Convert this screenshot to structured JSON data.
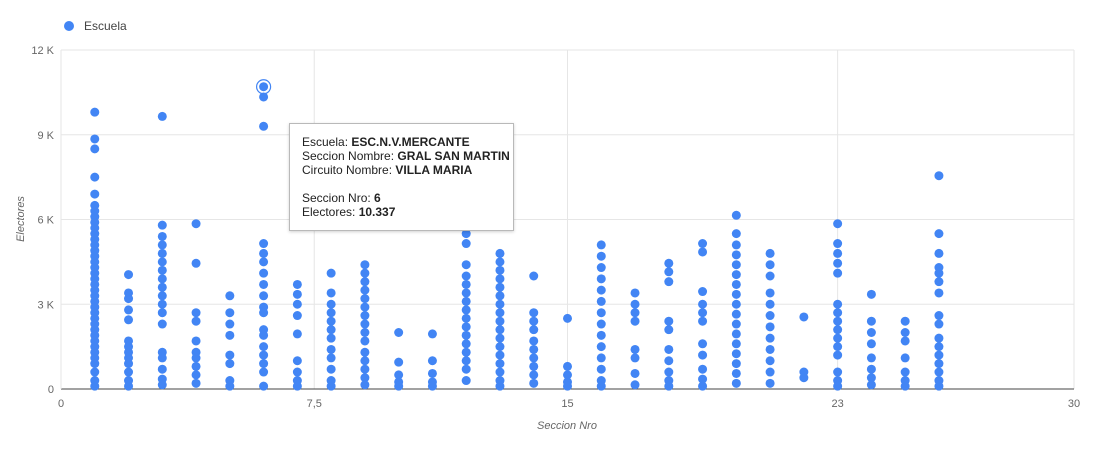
{
  "colors": {
    "series": "#4285f4",
    "grid": "#e6e6e6",
    "axis": "#444444"
  },
  "legend": {
    "label": "Escuela",
    "icon": "legend-circle-icon"
  },
  "tooltip": {
    "rows": [
      {
        "key": "Escuela:",
        "value": "ESC.N.V.MERCANTE"
      },
      {
        "key": "Seccion Nombre:",
        "value": "GRAL SAN MARTIN"
      },
      {
        "key": "Circuito Nombre:",
        "value": "VILLA MARIA"
      },
      {
        "key": "Seccion Nro:",
        "value": "6"
      },
      {
        "key": "Electores:",
        "value": "10.337"
      }
    ]
  },
  "chart_data": {
    "type": "scatter",
    "xlabel": "Seccion Nro",
    "ylabel": "Electores",
    "xlim": [
      0,
      30
    ],
    "ylim": [
      0,
      12000
    ],
    "xticks": [
      0,
      7.5,
      15,
      23,
      30
    ],
    "xtick_labels": [
      "0",
      "7,5",
      "15",
      "23",
      "30"
    ],
    "yticks": [
      0,
      3000,
      6000,
      9000,
      12000
    ],
    "ytick_labels": [
      "0",
      "3 K",
      "6 K",
      "9 K",
      "12 K"
    ],
    "grid": true,
    "legend_position": "top-left",
    "highlight": {
      "x": 6,
      "y": 10337
    },
    "series": [
      {
        "name": "Escuela",
        "points": [
          [
            1,
            9800
          ],
          [
            1,
            8850
          ],
          [
            1,
            8500
          ],
          [
            1,
            7500
          ],
          [
            1,
            6900
          ],
          [
            1,
            6500
          ],
          [
            1,
            6300
          ],
          [
            1,
            6100
          ],
          [
            1,
            5900
          ],
          [
            1,
            5700
          ],
          [
            1,
            5500
          ],
          [
            1,
            5300
          ],
          [
            1,
            5100
          ],
          [
            1,
            4900
          ],
          [
            1,
            4700
          ],
          [
            1,
            4500
          ],
          [
            1,
            4300
          ],
          [
            1,
            4100
          ],
          [
            1,
            3900
          ],
          [
            1,
            3700
          ],
          [
            1,
            3500
          ],
          [
            1,
            3300
          ],
          [
            1,
            3100
          ],
          [
            1,
            2900
          ],
          [
            1,
            2700
          ],
          [
            1,
            2500
          ],
          [
            1,
            2300
          ],
          [
            1,
            2100
          ],
          [
            1,
            1900
          ],
          [
            1,
            1700
          ],
          [
            1,
            1500
          ],
          [
            1,
            1300
          ],
          [
            1,
            1100
          ],
          [
            1,
            900
          ],
          [
            1,
            600
          ],
          [
            1,
            300
          ],
          [
            1,
            100
          ],
          [
            2,
            4050
          ],
          [
            2,
            3400
          ],
          [
            2,
            3200
          ],
          [
            2,
            2800
          ],
          [
            2,
            2450
          ],
          [
            2,
            1700
          ],
          [
            2,
            1500
          ],
          [
            2,
            1300
          ],
          [
            2,
            1100
          ],
          [
            2,
            900
          ],
          [
            2,
            600
          ],
          [
            2,
            300
          ],
          [
            2,
            100
          ],
          [
            3,
            9650
          ],
          [
            3,
            5800
          ],
          [
            3,
            5400
          ],
          [
            3,
            5100
          ],
          [
            3,
            4800
          ],
          [
            3,
            4500
          ],
          [
            3,
            4200
          ],
          [
            3,
            3900
          ],
          [
            3,
            3600
          ],
          [
            3,
            3300
          ],
          [
            3,
            3000
          ],
          [
            3,
            2700
          ],
          [
            3,
            2300
          ],
          [
            3,
            1300
          ],
          [
            3,
            1100
          ],
          [
            3,
            700
          ],
          [
            3,
            350
          ],
          [
            3,
            150
          ],
          [
            4,
            5850
          ],
          [
            4,
            4450
          ],
          [
            4,
            2700
          ],
          [
            4,
            2400
          ],
          [
            4,
            1700
          ],
          [
            4,
            1300
          ],
          [
            4,
            1100
          ],
          [
            4,
            800
          ],
          [
            4,
            500
          ],
          [
            4,
            200
          ],
          [
            5,
            3300
          ],
          [
            5,
            2700
          ],
          [
            5,
            2300
          ],
          [
            5,
            1900
          ],
          [
            5,
            1200
          ],
          [
            5,
            900
          ],
          [
            5,
            300
          ],
          [
            5,
            100
          ],
          [
            6,
            10700
          ],
          [
            6,
            10337
          ],
          [
            6,
            9300
          ],
          [
            6,
            5150
          ],
          [
            6,
            4800
          ],
          [
            6,
            4500
          ],
          [
            6,
            4100
          ],
          [
            6,
            3700
          ],
          [
            6,
            3300
          ],
          [
            6,
            2900
          ],
          [
            6,
            2700
          ],
          [
            6,
            2100
          ],
          [
            6,
            1900
          ],
          [
            6,
            1500
          ],
          [
            6,
            1200
          ],
          [
            6,
            900
          ],
          [
            6,
            600
          ],
          [
            6,
            100
          ],
          [
            7,
            3700
          ],
          [
            7,
            3350
          ],
          [
            7,
            3000
          ],
          [
            7,
            2600
          ],
          [
            7,
            1950
          ],
          [
            7,
            1000
          ],
          [
            7,
            600
          ],
          [
            7,
            300
          ],
          [
            7,
            100
          ],
          [
            8,
            4100
          ],
          [
            8,
            3400
          ],
          [
            8,
            3000
          ],
          [
            8,
            2700
          ],
          [
            8,
            2400
          ],
          [
            8,
            2100
          ],
          [
            8,
            1800
          ],
          [
            8,
            1400
          ],
          [
            8,
            1100
          ],
          [
            8,
            700
          ],
          [
            8,
            300
          ],
          [
            8,
            100
          ],
          [
            9,
            4400
          ],
          [
            9,
            4100
          ],
          [
            9,
            3800
          ],
          [
            9,
            3500
          ],
          [
            9,
            3200
          ],
          [
            9,
            2900
          ],
          [
            9,
            2600
          ],
          [
            9,
            2300
          ],
          [
            9,
            2000
          ],
          [
            9,
            1700
          ],
          [
            9,
            1300
          ],
          [
            9,
            1000
          ],
          [
            9,
            700
          ],
          [
            9,
            400
          ],
          [
            9,
            150
          ],
          [
            10,
            2000
          ],
          [
            10,
            950
          ],
          [
            10,
            500
          ],
          [
            10,
            250
          ],
          [
            10,
            100
          ],
          [
            11,
            1950
          ],
          [
            11,
            1000
          ],
          [
            11,
            550
          ],
          [
            11,
            250
          ],
          [
            11,
            100
          ],
          [
            12,
            5500
          ],
          [
            12,
            5150
          ],
          [
            12,
            4400
          ],
          [
            12,
            4000
          ],
          [
            12,
            3700
          ],
          [
            12,
            3400
          ],
          [
            12,
            3100
          ],
          [
            12,
            2800
          ],
          [
            12,
            2500
          ],
          [
            12,
            2200
          ],
          [
            12,
            1900
          ],
          [
            12,
            1600
          ],
          [
            12,
            1300
          ],
          [
            12,
            1000
          ],
          [
            12,
            700
          ],
          [
            12,
            300
          ],
          [
            13,
            4800
          ],
          [
            13,
            4500
          ],
          [
            13,
            4200
          ],
          [
            13,
            3900
          ],
          [
            13,
            3600
          ],
          [
            13,
            3300
          ],
          [
            13,
            3000
          ],
          [
            13,
            2700
          ],
          [
            13,
            2400
          ],
          [
            13,
            2100
          ],
          [
            13,
            1800
          ],
          [
            13,
            1500
          ],
          [
            13,
            1200
          ],
          [
            13,
            900
          ],
          [
            13,
            600
          ],
          [
            13,
            300
          ],
          [
            13,
            100
          ],
          [
            14,
            4000
          ],
          [
            14,
            2700
          ],
          [
            14,
            2400
          ],
          [
            14,
            2100
          ],
          [
            14,
            1700
          ],
          [
            14,
            1400
          ],
          [
            14,
            1100
          ],
          [
            14,
            800
          ],
          [
            14,
            500
          ],
          [
            14,
            200
          ],
          [
            15,
            2500
          ],
          [
            15,
            800
          ],
          [
            15,
            500
          ],
          [
            15,
            250
          ],
          [
            15,
            100
          ],
          [
            16,
            5100
          ],
          [
            16,
            4700
          ],
          [
            16,
            4300
          ],
          [
            16,
            3900
          ],
          [
            16,
            3500
          ],
          [
            16,
            3100
          ],
          [
            16,
            2700
          ],
          [
            16,
            2300
          ],
          [
            16,
            1900
          ],
          [
            16,
            1500
          ],
          [
            16,
            1100
          ],
          [
            16,
            700
          ],
          [
            16,
            300
          ],
          [
            16,
            100
          ],
          [
            17,
            3400
          ],
          [
            17,
            3000
          ],
          [
            17,
            2700
          ],
          [
            17,
            2400
          ],
          [
            17,
            1400
          ],
          [
            17,
            1100
          ],
          [
            17,
            550
          ],
          [
            17,
            150
          ],
          [
            18,
            4450
          ],
          [
            18,
            4150
          ],
          [
            18,
            3800
          ],
          [
            18,
            2400
          ],
          [
            18,
            2100
          ],
          [
            18,
            1400
          ],
          [
            18,
            1000
          ],
          [
            18,
            600
          ],
          [
            18,
            300
          ],
          [
            18,
            100
          ],
          [
            19,
            5150
          ],
          [
            19,
            4850
          ],
          [
            19,
            3450
          ],
          [
            19,
            3000
          ],
          [
            19,
            2700
          ],
          [
            19,
            2400
          ],
          [
            19,
            1600
          ],
          [
            19,
            1200
          ],
          [
            19,
            700
          ],
          [
            19,
            350
          ],
          [
            19,
            100
          ],
          [
            20,
            6150
          ],
          [
            20,
            5500
          ],
          [
            20,
            5100
          ],
          [
            20,
            4750
          ],
          [
            20,
            4400
          ],
          [
            20,
            4050
          ],
          [
            20,
            3700
          ],
          [
            20,
            3350
          ],
          [
            20,
            3000
          ],
          [
            20,
            2650
          ],
          [
            20,
            2300
          ],
          [
            20,
            1950
          ],
          [
            20,
            1600
          ],
          [
            20,
            1250
          ],
          [
            20,
            900
          ],
          [
            20,
            550
          ],
          [
            20,
            200
          ],
          [
            21,
            4800
          ],
          [
            21,
            4400
          ],
          [
            21,
            4000
          ],
          [
            21,
            3400
          ],
          [
            21,
            3000
          ],
          [
            21,
            2600
          ],
          [
            21,
            2200
          ],
          [
            21,
            1800
          ],
          [
            21,
            1400
          ],
          [
            21,
            1000
          ],
          [
            21,
            600
          ],
          [
            21,
            200
          ],
          [
            22,
            2550
          ],
          [
            22,
            600
          ],
          [
            22,
            400
          ],
          [
            23,
            5850
          ],
          [
            23,
            5150
          ],
          [
            23,
            4800
          ],
          [
            23,
            4450
          ],
          [
            23,
            4100
          ],
          [
            23,
            3000
          ],
          [
            23,
            2700
          ],
          [
            23,
            2400
          ],
          [
            23,
            2100
          ],
          [
            23,
            1800
          ],
          [
            23,
            1500
          ],
          [
            23,
            1200
          ],
          [
            23,
            600
          ],
          [
            23,
            300
          ],
          [
            23,
            100
          ],
          [
            24,
            3350
          ],
          [
            24,
            2400
          ],
          [
            24,
            2000
          ],
          [
            24,
            1600
          ],
          [
            24,
            1100
          ],
          [
            24,
            700
          ],
          [
            24,
            400
          ],
          [
            24,
            150
          ],
          [
            25,
            2400
          ],
          [
            25,
            2000
          ],
          [
            25,
            1700
          ],
          [
            25,
            1100
          ],
          [
            25,
            600
          ],
          [
            25,
            300
          ],
          [
            25,
            100
          ],
          [
            26,
            7550
          ],
          [
            26,
            5500
          ],
          [
            26,
            4800
          ],
          [
            26,
            4300
          ],
          [
            26,
            4100
          ],
          [
            26,
            3800
          ],
          [
            26,
            3400
          ],
          [
            26,
            2600
          ],
          [
            26,
            2300
          ],
          [
            26,
            1800
          ],
          [
            26,
            1500
          ],
          [
            26,
            1200
          ],
          [
            26,
            900
          ],
          [
            26,
            600
          ],
          [
            26,
            300
          ],
          [
            26,
            100
          ]
        ]
      }
    ]
  }
}
